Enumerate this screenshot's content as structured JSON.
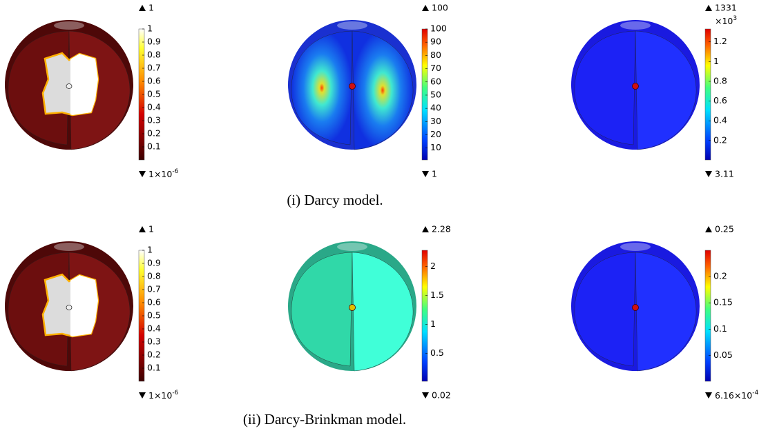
{
  "rows": [
    {
      "caption": "(i) Darcy model.",
      "panels": [
        {
          "colormap": "heat",
          "max": {
            "value": 1
          },
          "min": {
            "value": 1e-06,
            "label": "1×10",
            "sup": "-6"
          },
          "ticks": [
            0.1,
            0.2,
            0.3,
            0.4,
            0.5,
            0.6,
            0.7,
            0.8,
            0.9,
            1
          ]
        },
        {
          "colormap": "rainbow",
          "max": {
            "value": 100
          },
          "min": {
            "value": 1
          },
          "ticks": [
            10,
            20,
            30,
            40,
            50,
            60,
            70,
            80,
            90,
            100
          ]
        },
        {
          "colormap": "rainbow",
          "max": {
            "value": 1331
          },
          "min": {
            "value": 3.11
          },
          "multiplier": {
            "value": 1000,
            "label": "×10",
            "sup": "3"
          },
          "ticks": [
            0.2,
            0.4,
            0.6,
            0.8,
            1,
            1.2
          ]
        }
      ]
    },
    {
      "caption": "(ii) Darcy-Brinkman model.",
      "panels": [
        {
          "colormap": "heat",
          "max": {
            "value": 1
          },
          "min": {
            "value": 1e-06,
            "label": "1×10",
            "sup": "-6"
          },
          "ticks": [
            0.1,
            0.2,
            0.3,
            0.4,
            0.5,
            0.6,
            0.7,
            0.8,
            0.9,
            1
          ]
        },
        {
          "colormap": "rainbow",
          "max": {
            "value": 2.28
          },
          "min": {
            "value": 0.02
          },
          "ticks": [
            0.5,
            1,
            1.5,
            2
          ]
        },
        {
          "colormap": "rainbow",
          "max": {
            "value": 0.25
          },
          "min": {
            "value": 0.000616,
            "label": "6.16×10",
            "sup": "-4"
          },
          "ticks": [
            0.05,
            0.1,
            0.15,
            0.2
          ]
        }
      ]
    }
  ]
}
